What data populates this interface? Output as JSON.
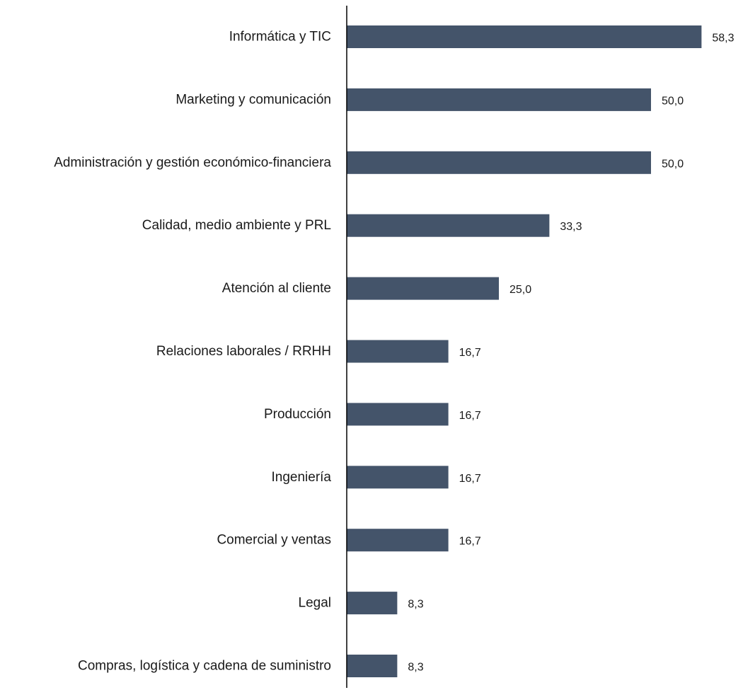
{
  "chart_data": {
    "type": "bar",
    "orientation": "horizontal",
    "categories": [
      "Informática y TIC",
      "Marketing y comunicación",
      "Administración y gestión económico-financiera",
      "Calidad, medio ambiente y PRL",
      "Atención al cliente",
      "Relaciones laborales / RRHH",
      "Producción",
      "Ingeniería",
      "Comercial y ventas",
      "Legal",
      "Compras, logística y cadena de suministro"
    ],
    "values": [
      58.3,
      50.0,
      50.0,
      33.3,
      25.0,
      16.7,
      16.7,
      16.7,
      16.7,
      8.3,
      8.3
    ],
    "value_labels": [
      "58,3",
      "50,0",
      "50,0",
      "33,3",
      "25,0",
      "16,7",
      "16,7",
      "16,7",
      "16,7",
      "8,3",
      "8,3"
    ],
    "title": "",
    "xlabel": "",
    "ylabel": "",
    "xlim": [
      0,
      60
    ],
    "grid": false,
    "legend": "none",
    "bar_color": "#44546a",
    "axis_color": "#000000"
  }
}
